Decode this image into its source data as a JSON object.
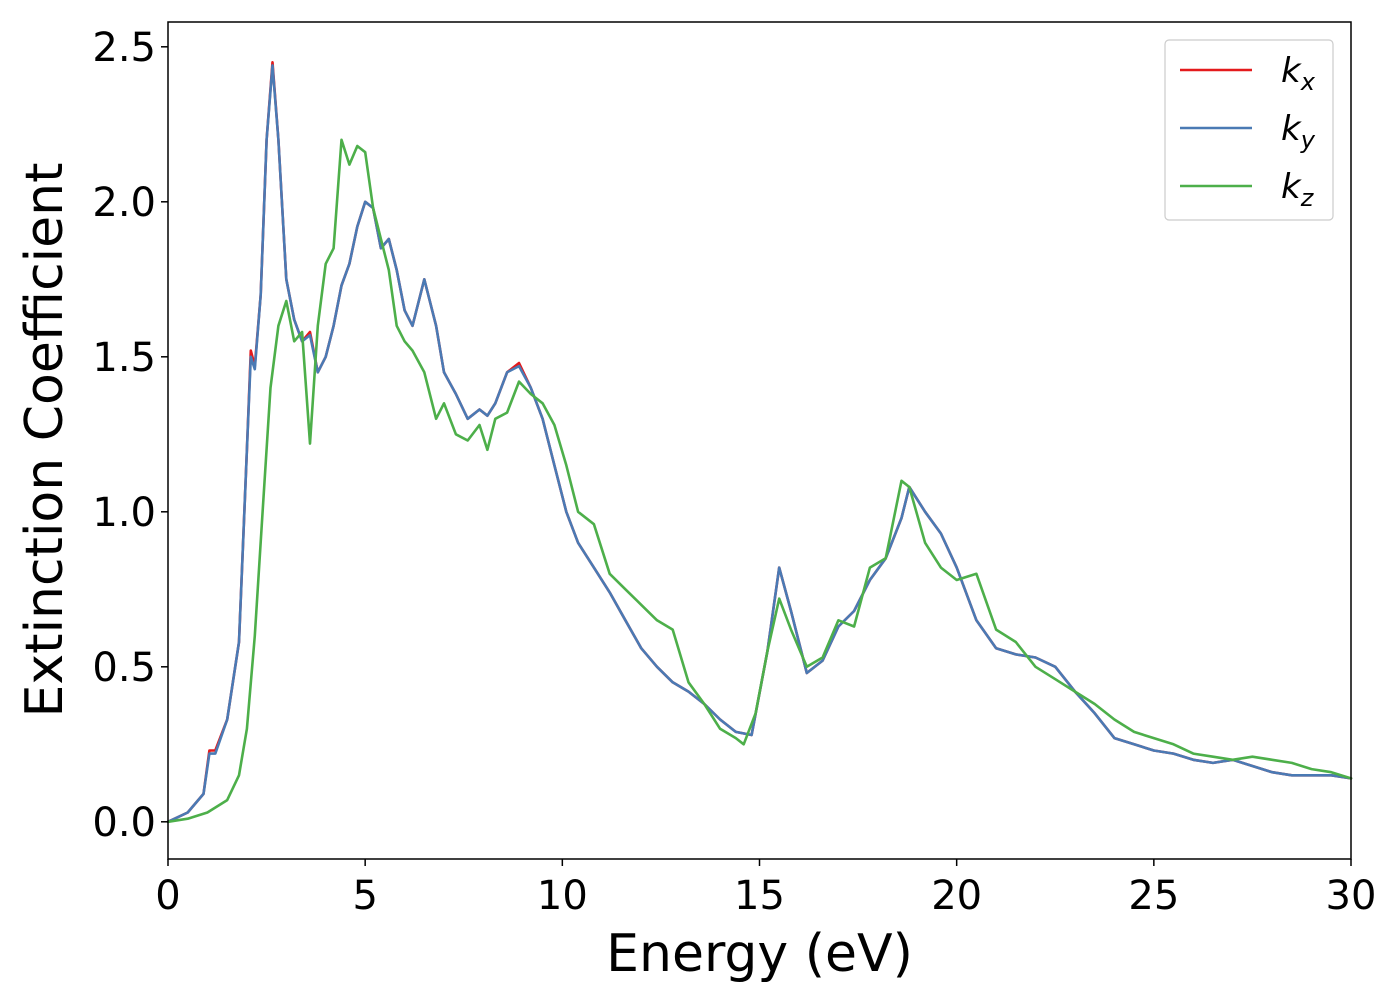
{
  "chart_data": {
    "type": "line",
    "xlabel": "Energy (eV)",
    "ylabel": "Extinction Coefficient",
    "xlim": [
      0,
      30
    ],
    "ylim": [
      -0.12,
      2.58
    ],
    "xticks": [
      "0",
      "5",
      "10",
      "15",
      "20",
      "25",
      "30"
    ],
    "yticks": [
      "0.0",
      "0.5",
      "1.0",
      "1.5",
      "2.0",
      "2.5"
    ],
    "grid": false,
    "legend_position": "top-right",
    "series": [
      {
        "name": "k",
        "subscript": "x",
        "color": "#e41a1c",
        "x": [
          0,
          0.5,
          0.9,
          1.05,
          1.2,
          1.5,
          1.8,
          2.0,
          2.1,
          2.2,
          2.35,
          2.5,
          2.65,
          2.8,
          3.0,
          3.2,
          3.4,
          3.6,
          3.8,
          4.0,
          4.2,
          4.4,
          4.6,
          4.8,
          5.0,
          5.2,
          5.4,
          5.6,
          5.8,
          6.0,
          6.2,
          6.5,
          6.8,
          7.0,
          7.3,
          7.6,
          7.9,
          8.1,
          8.3,
          8.6,
          8.9,
          9.2,
          9.5,
          9.8,
          10.1,
          10.4,
          10.8,
          11.2,
          11.6,
          12.0,
          12.4,
          12.8,
          13.2,
          13.6,
          14.0,
          14.4,
          14.8,
          15.2,
          15.5,
          15.8,
          16.2,
          16.6,
          17.0,
          17.4,
          17.8,
          18.2,
          18.6,
          18.8,
          19.2,
          19.6,
          20.0,
          20.5,
          21.0,
          21.5,
          22.0,
          22.5,
          23.0,
          23.5,
          24.0,
          24.5,
          25.0,
          25.5,
          26.0,
          26.5,
          27.0,
          27.5,
          28.0,
          28.5,
          29.0,
          29.5,
          30.0
        ],
        "y": [
          0.0,
          0.03,
          0.09,
          0.23,
          0.23,
          0.33,
          0.58,
          1.2,
          1.52,
          1.47,
          1.7,
          2.2,
          2.45,
          2.2,
          1.75,
          1.62,
          1.55,
          1.58,
          1.45,
          1.5,
          1.6,
          1.73,
          1.8,
          1.92,
          2.0,
          1.98,
          1.85,
          1.88,
          1.78,
          1.65,
          1.6,
          1.75,
          1.6,
          1.45,
          1.38,
          1.3,
          1.33,
          1.31,
          1.35,
          1.45,
          1.48,
          1.4,
          1.3,
          1.15,
          1.0,
          0.9,
          0.82,
          0.74,
          0.65,
          0.56,
          0.5,
          0.45,
          0.42,
          0.38,
          0.33,
          0.29,
          0.28,
          0.55,
          0.82,
          0.68,
          0.48,
          0.52,
          0.63,
          0.68,
          0.78,
          0.85,
          0.98,
          1.08,
          1.0,
          0.93,
          0.82,
          0.65,
          0.56,
          0.54,
          0.53,
          0.5,
          0.42,
          0.35,
          0.27,
          0.25,
          0.23,
          0.22,
          0.2,
          0.19,
          0.2,
          0.18,
          0.16,
          0.15,
          0.15,
          0.15,
          0.14
        ]
      },
      {
        "name": "k",
        "subscript": "y",
        "color": "#4a7ab4",
        "x": [
          0,
          0.5,
          0.9,
          1.05,
          1.2,
          1.5,
          1.8,
          2.0,
          2.1,
          2.2,
          2.35,
          2.5,
          2.65,
          2.8,
          3.0,
          3.2,
          3.4,
          3.6,
          3.8,
          4.0,
          4.2,
          4.4,
          4.6,
          4.8,
          5.0,
          5.2,
          5.4,
          5.6,
          5.8,
          6.0,
          6.2,
          6.5,
          6.8,
          7.0,
          7.3,
          7.6,
          7.9,
          8.1,
          8.3,
          8.6,
          8.9,
          9.2,
          9.5,
          9.8,
          10.1,
          10.4,
          10.8,
          11.2,
          11.6,
          12.0,
          12.4,
          12.8,
          13.2,
          13.6,
          14.0,
          14.4,
          14.8,
          15.2,
          15.5,
          15.8,
          16.2,
          16.6,
          17.0,
          17.4,
          17.8,
          18.2,
          18.6,
          18.8,
          19.2,
          19.6,
          20.0,
          20.5,
          21.0,
          21.5,
          22.0,
          22.5,
          23.0,
          23.5,
          24.0,
          24.5,
          25.0,
          25.5,
          26.0,
          26.5,
          27.0,
          27.5,
          28.0,
          28.5,
          29.0,
          29.5,
          30.0
        ],
        "y": [
          0.0,
          0.03,
          0.09,
          0.22,
          0.22,
          0.33,
          0.58,
          1.2,
          1.5,
          1.46,
          1.7,
          2.2,
          2.44,
          2.2,
          1.75,
          1.62,
          1.55,
          1.57,
          1.45,
          1.5,
          1.6,
          1.73,
          1.8,
          1.92,
          2.0,
          1.98,
          1.85,
          1.88,
          1.78,
          1.65,
          1.6,
          1.75,
          1.6,
          1.45,
          1.38,
          1.3,
          1.33,
          1.31,
          1.35,
          1.45,
          1.47,
          1.4,
          1.3,
          1.15,
          1.0,
          0.9,
          0.82,
          0.74,
          0.65,
          0.56,
          0.5,
          0.45,
          0.42,
          0.38,
          0.33,
          0.29,
          0.28,
          0.55,
          0.82,
          0.68,
          0.48,
          0.52,
          0.63,
          0.68,
          0.78,
          0.85,
          0.98,
          1.08,
          1.0,
          0.93,
          0.82,
          0.65,
          0.56,
          0.54,
          0.53,
          0.5,
          0.42,
          0.35,
          0.27,
          0.25,
          0.23,
          0.22,
          0.2,
          0.19,
          0.2,
          0.18,
          0.16,
          0.15,
          0.15,
          0.15,
          0.14
        ]
      },
      {
        "name": "k",
        "subscript": "z",
        "color": "#4daf4a",
        "x": [
          0,
          0.5,
          1.0,
          1.5,
          1.8,
          2.0,
          2.2,
          2.4,
          2.6,
          2.8,
          3.0,
          3.2,
          3.4,
          3.6,
          3.8,
          4.0,
          4.2,
          4.4,
          4.6,
          4.8,
          5.0,
          5.2,
          5.4,
          5.6,
          5.8,
          6.0,
          6.2,
          6.5,
          6.8,
          7.0,
          7.3,
          7.6,
          7.9,
          8.1,
          8.3,
          8.6,
          8.9,
          9.2,
          9.5,
          9.8,
          10.1,
          10.4,
          10.8,
          11.2,
          11.6,
          12.0,
          12.4,
          12.8,
          13.2,
          13.6,
          14.0,
          14.4,
          14.6,
          14.9,
          15.2,
          15.5,
          15.8,
          16.2,
          16.6,
          17.0,
          17.4,
          17.8,
          18.2,
          18.6,
          18.8,
          19.2,
          19.6,
          20.0,
          20.5,
          21.0,
          21.5,
          22.0,
          22.5,
          23.0,
          23.5,
          24.0,
          24.5,
          25.0,
          25.5,
          26.0,
          26.5,
          27.0,
          27.5,
          28.0,
          28.5,
          29.0,
          29.5,
          30.0
        ],
        "y": [
          0.0,
          0.01,
          0.03,
          0.07,
          0.15,
          0.3,
          0.6,
          1.0,
          1.4,
          1.6,
          1.68,
          1.55,
          1.58,
          1.22,
          1.6,
          1.8,
          1.85,
          2.2,
          2.12,
          2.18,
          2.16,
          1.98,
          1.88,
          1.78,
          1.6,
          1.55,
          1.52,
          1.45,
          1.3,
          1.35,
          1.25,
          1.23,
          1.28,
          1.2,
          1.3,
          1.32,
          1.42,
          1.38,
          1.35,
          1.28,
          1.15,
          1.0,
          0.96,
          0.8,
          0.75,
          0.7,
          0.65,
          0.62,
          0.45,
          0.38,
          0.3,
          0.27,
          0.25,
          0.35,
          0.55,
          0.72,
          0.62,
          0.5,
          0.53,
          0.65,
          0.63,
          0.82,
          0.85,
          1.1,
          1.08,
          0.9,
          0.82,
          0.78,
          0.8,
          0.62,
          0.58,
          0.5,
          0.46,
          0.42,
          0.38,
          0.33,
          0.29,
          0.27,
          0.25,
          0.22,
          0.21,
          0.2,
          0.21,
          0.2,
          0.19,
          0.17,
          0.16,
          0.14
        ]
      }
    ]
  }
}
